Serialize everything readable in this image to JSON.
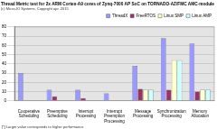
{
  "chart_data": {
    "type": "bar",
    "title": "Thread Metric test for 2x ARM Cortex-A9 cores of Zynq-7000 AP SoC on TORNADO-AZ/FMC AMC-module",
    "subtitle": "(c) Micro-IO Systems, Copyright apr. 2015",
    "annotation": "[*] Larger value corresponds to higher performance",
    "categories": [
      "Cooperative Scheduling",
      "Preemptive Scheduling",
      "Interrupt Processing",
      "Interrupt Preemption Processing",
      "Message Processing",
      "Synchronization Processing",
      "Memory Allocation"
    ],
    "series": [
      {
        "name": "ThreadX",
        "color": "#9999ff",
        "values": [
          30,
          12,
          12,
          8,
          38,
          68,
          62
        ]
      },
      {
        "name": "FreeRTOS",
        "color": "#993366",
        "values": [
          0,
          5,
          3,
          0,
          13,
          12,
          10
        ]
      },
      {
        "name": "Linux SMP",
        "color": "#ffffcc",
        "values": [
          0,
          0,
          0,
          0,
          12,
          44,
          12
        ]
      },
      {
        "name": "Linux AMP",
        "color": "#ccffff",
        "values": [
          0,
          0,
          0,
          0,
          12,
          44,
          12
        ]
      }
    ],
    "ylim": [
      0,
      80
    ],
    "yticks": [
      0,
      10,
      20,
      30,
      40,
      50,
      60,
      70,
      80
    ],
    "grid": true,
    "legend": "top"
  }
}
